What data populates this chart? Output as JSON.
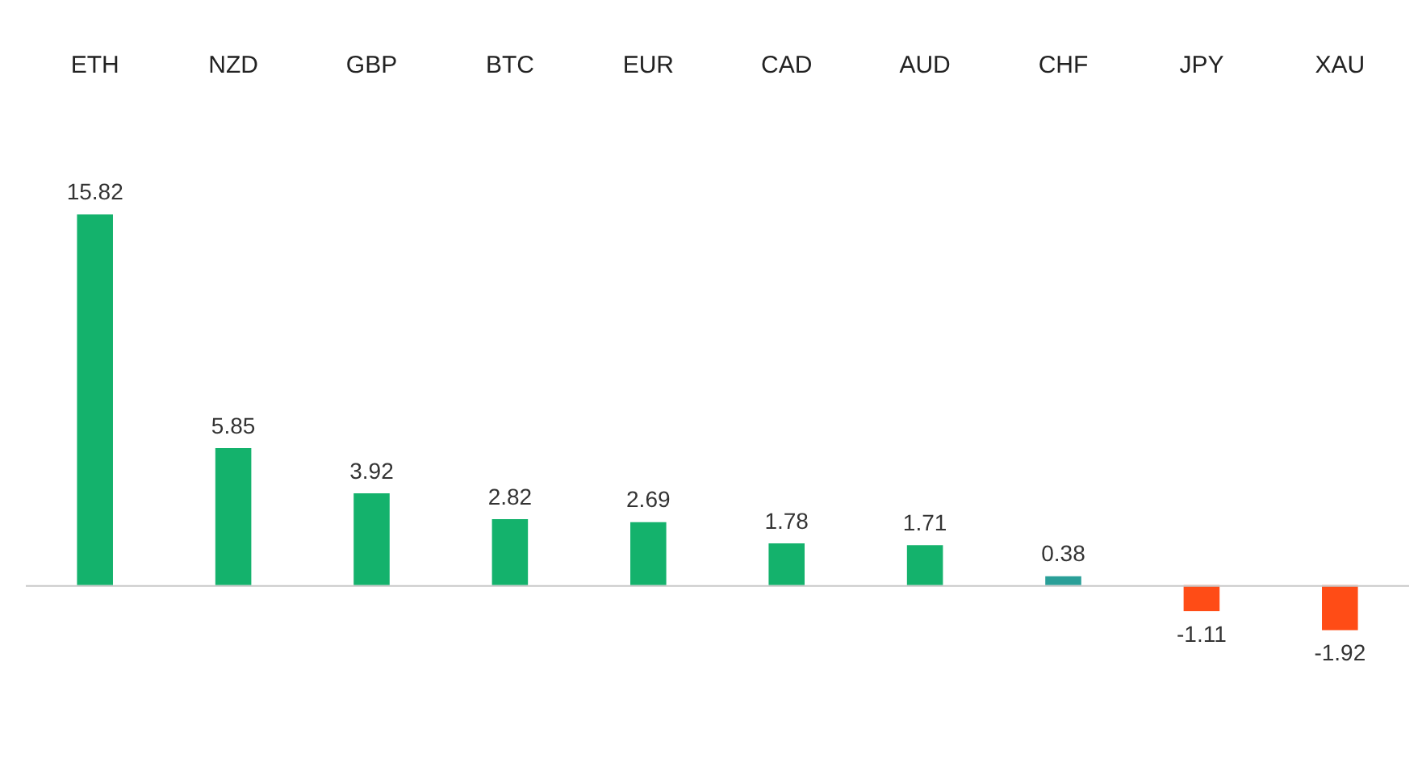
{
  "chart_data": {
    "type": "bar",
    "categories": [
      "ETH",
      "NZD",
      "GBP",
      "BTC",
      "EUR",
      "CAD",
      "AUD",
      "CHF",
      "JPY",
      "XAU"
    ],
    "values": [
      15.82,
      5.85,
      3.92,
      2.82,
      2.69,
      1.78,
      1.71,
      0.38,
      -1.11,
      -1.92
    ],
    "colors": [
      "#14b26c",
      "#14b26c",
      "#14b26c",
      "#14b26c",
      "#14b26c",
      "#14b26c",
      "#14b26c",
      "#2a9f98",
      "#ff4c16",
      "#ff4c16"
    ],
    "data_labels": true,
    "relative": false,
    "grid": false,
    "legend": false
  }
}
